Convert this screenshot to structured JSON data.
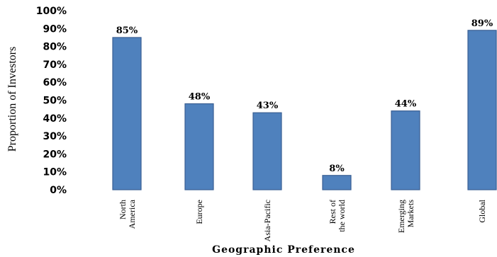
{
  "chart_data": {
    "type": "bar",
    "categories": [
      [
        "North",
        "America"
      ],
      [
        "Europe"
      ],
      [
        "Asia-Pacific"
      ],
      [
        "Rest of",
        "the world"
      ],
      [
        "Emerging",
        "Markets"
      ],
      [
        "Global"
      ]
    ],
    "values": [
      85,
      48,
      43,
      8,
      44,
      89
    ],
    "value_labels": [
      "85%",
      "48%",
      "43%",
      "8%",
      "44%",
      "89%"
    ],
    "y_ticks": [
      "0%",
      "10%",
      "20%",
      "30%",
      "40%",
      "50%",
      "60%",
      "70%",
      "80%",
      "90%",
      "100%"
    ],
    "ylim": [
      0,
      100
    ],
    "xlabel": "Geographic Preference",
    "ylabel": "Proportion of Investors",
    "bar_color": "#4f81bd",
    "bar_edge_color": "#3a5f93",
    "grid": false,
    "legend": "none"
  }
}
